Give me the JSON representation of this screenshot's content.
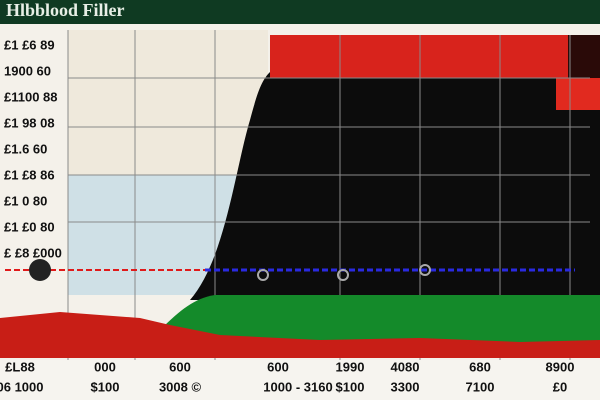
{
  "header": {
    "title": "Hlbblood Filler"
  },
  "y_labels": [
    "£1 £6 89",
    "1900 60",
    "£1100 88",
    "£1 98 08",
    "£1.6 60",
    "£1 £8 86",
    "£1 0 80",
    "£1 £0 80",
    "£ £8 £000"
  ],
  "x_labels_top": [
    "£L88",
    "000",
    "600",
    "600",
    "1990",
    "4080",
    "680",
    "8900"
  ],
  "x_labels_bottom": [
    "06 1000",
    "$100",
    "3008 ©",
    "1000 - 3160",
    "$100",
    "3300",
    "7100",
    "£0"
  ]
}
